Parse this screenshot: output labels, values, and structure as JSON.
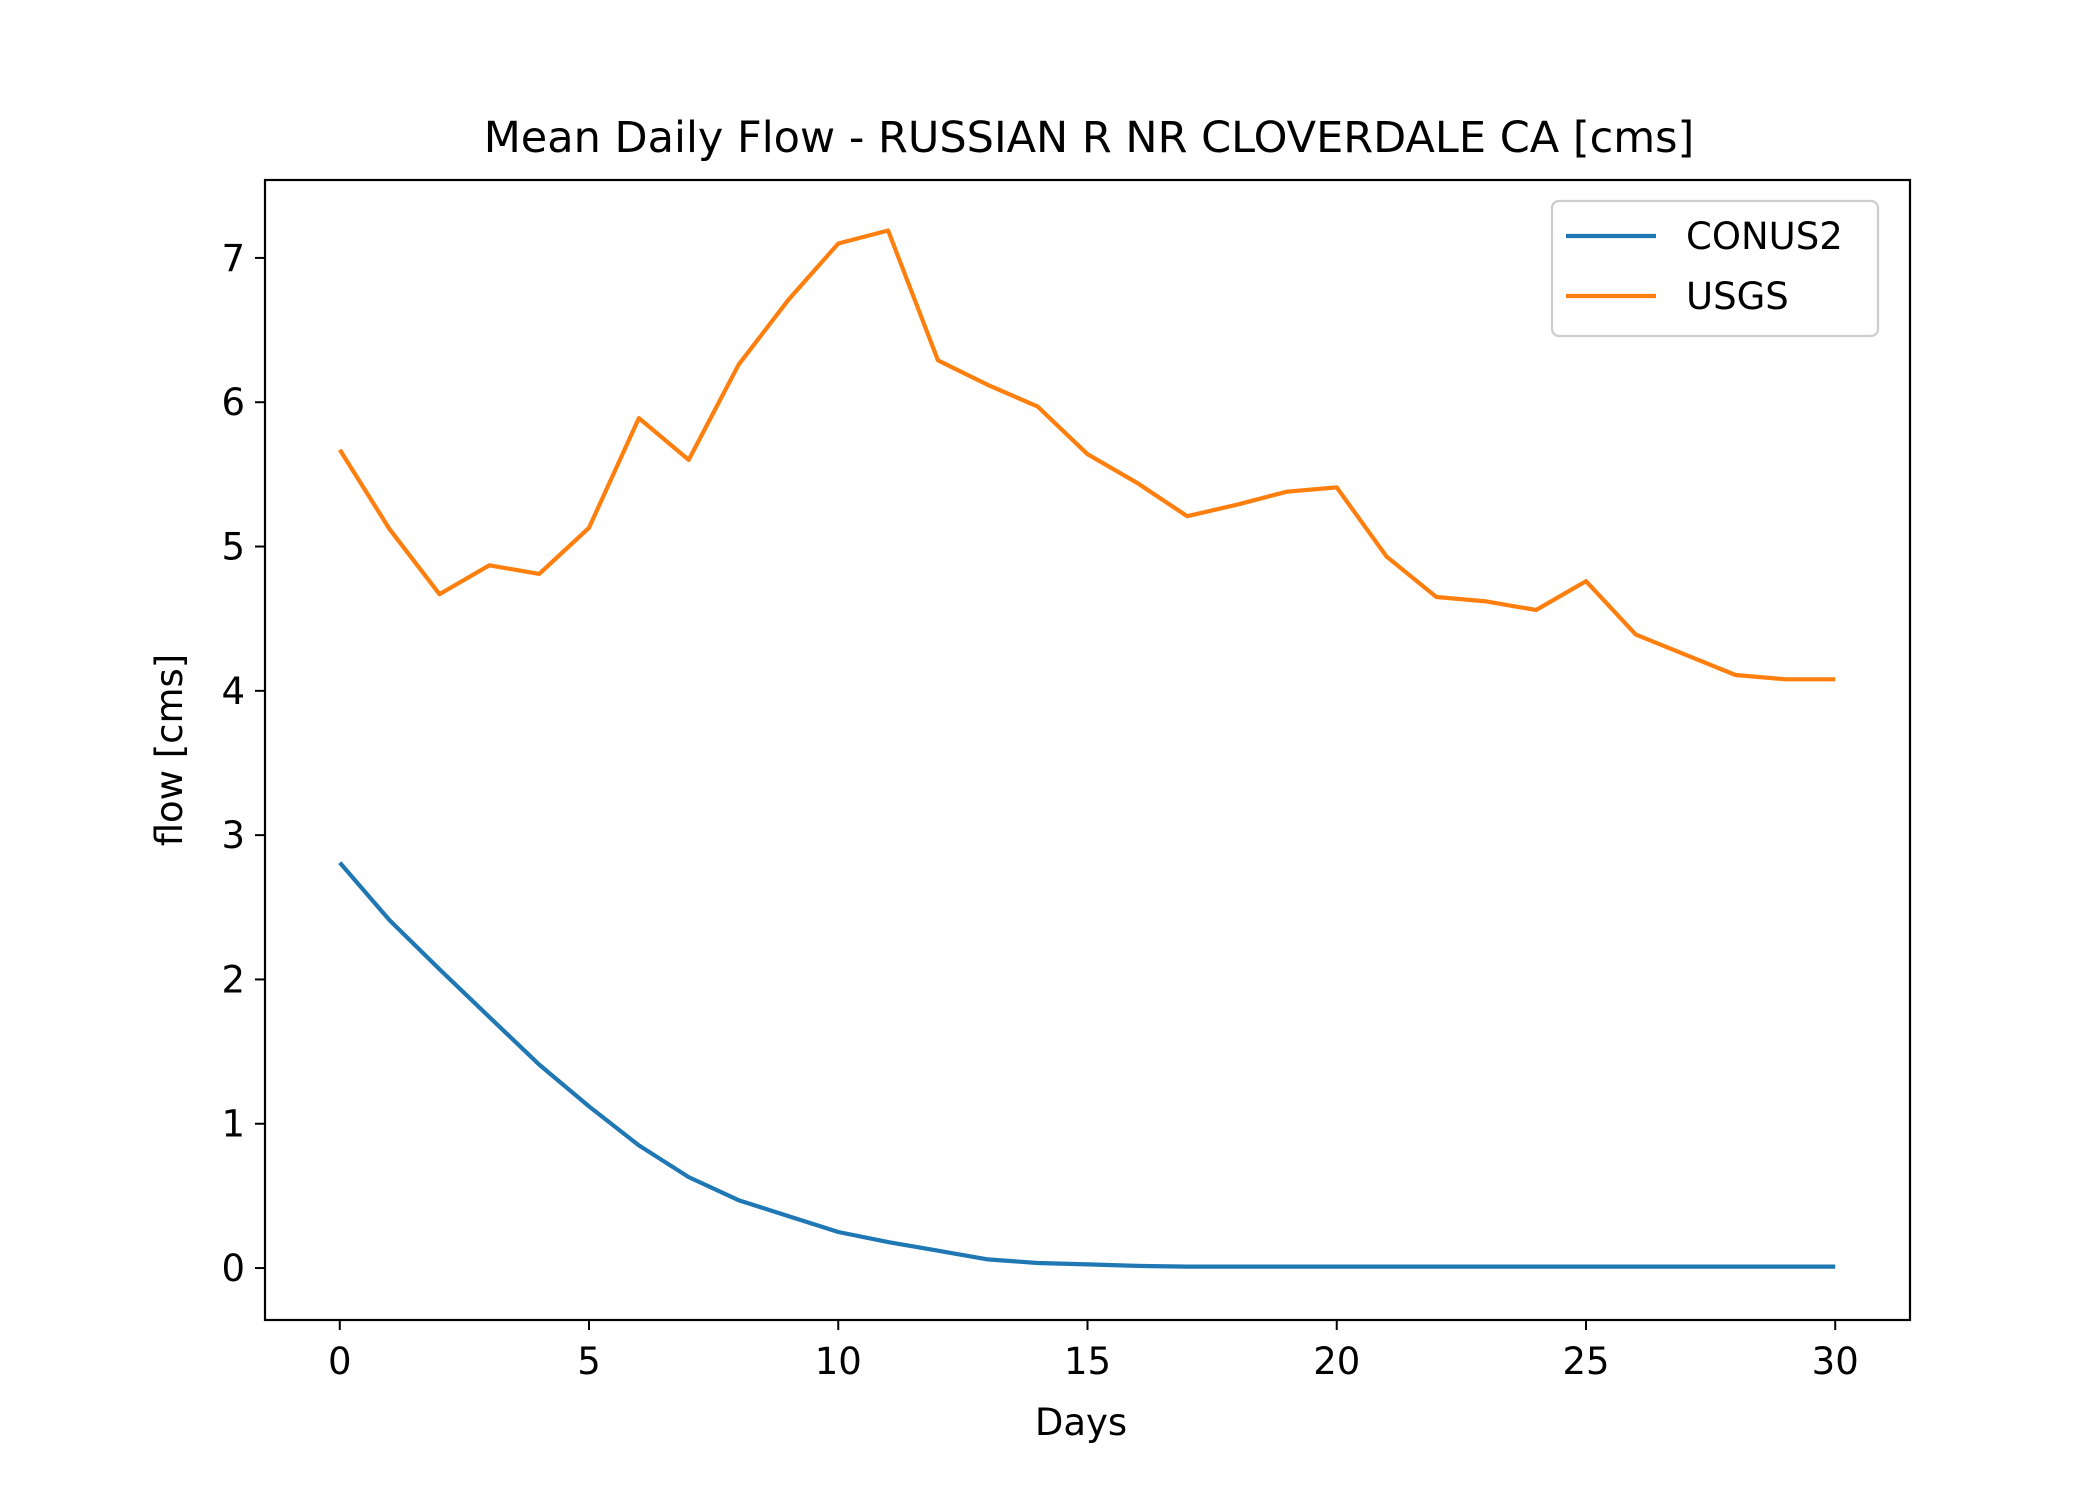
{
  "chart_data": {
    "type": "line",
    "title": "Mean Daily Flow - RUSSIAN R NR CLOVERDALE CA [cms]",
    "xlabel": "Days",
    "ylabel": "flow [cms]",
    "xlim": [
      -1.5,
      31.5
    ],
    "ylim": [
      -0.36,
      7.54
    ],
    "xticks": [
      0,
      5,
      10,
      15,
      20,
      25,
      30
    ],
    "yticks": [
      0,
      1,
      2,
      3,
      4,
      5,
      6,
      7
    ],
    "grid": false,
    "legend_position": "upper right",
    "x": [
      0,
      1,
      2,
      3,
      4,
      5,
      6,
      7,
      8,
      9,
      10,
      11,
      12,
      13,
      14,
      15,
      16,
      17,
      18,
      19,
      20,
      21,
      22,
      23,
      24,
      25,
      26,
      27,
      28,
      29,
      30
    ],
    "series": [
      {
        "name": "CONUS2",
        "color": "#1f77b4",
        "values": [
          2.81,
          2.41,
          2.07,
          1.74,
          1.41,
          1.12,
          0.85,
          0.63,
          0.47,
          0.36,
          0.25,
          0.18,
          0.12,
          0.06,
          0.035,
          0.025,
          0.015,
          0.01,
          0.01,
          0.01,
          0.01,
          0.01,
          0.01,
          0.01,
          0.01,
          0.01,
          0.01,
          0.01,
          0.01,
          0.01,
          0.01
        ]
      },
      {
        "name": "USGS",
        "color": "#ff7f0e",
        "values": [
          5.67,
          5.12,
          4.67,
          4.87,
          4.81,
          5.13,
          5.89,
          5.6,
          6.26,
          6.71,
          7.1,
          7.19,
          6.29,
          6.12,
          5.97,
          5.64,
          5.44,
          5.21,
          5.29,
          5.38,
          5.41,
          4.93,
          4.65,
          4.62,
          4.56,
          4.76,
          4.39,
          4.25,
          4.11,
          4.08,
          4.08
        ]
      }
    ]
  }
}
